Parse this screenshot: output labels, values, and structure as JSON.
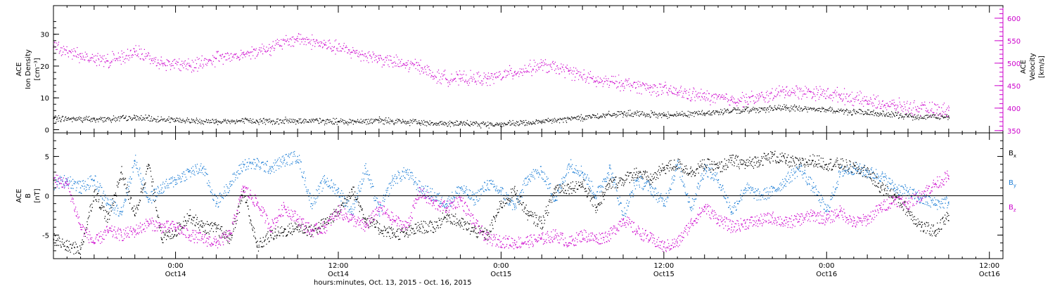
{
  "chart_data": [
    {
      "type": "scatter",
      "panel": "top",
      "ylabel_left_lines": [
        "ACE",
        "Ion Density",
        "[cm⁻³]"
      ],
      "ylabel_right_lines": [
        "ACE",
        "Velocity",
        "[km/s]"
      ],
      "ylim_left": [
        -1,
        39
      ],
      "ylim_right": [
        345,
        628
      ],
      "yticks_left": [
        0,
        10,
        20,
        30
      ],
      "yticks_right": [
        350,
        400,
        450,
        500,
        550,
        600
      ],
      "series": [
        {
          "axis": "left",
          "color": "#000000",
          "points": [
            [
              -9,
              3.5
            ],
            [
              -6,
              3.2
            ],
            [
              -3,
              3.6
            ],
            [
              0,
              2.9
            ],
            [
              3,
              2.6
            ],
            [
              6,
              2.7
            ],
            [
              9,
              2.8
            ],
            [
              12,
              2.5
            ],
            [
              15,
              2.8
            ],
            [
              18,
              2.2
            ],
            [
              21,
              1.8
            ],
            [
              24,
              1.6
            ],
            [
              27,
              2.4
            ],
            [
              30,
              3.8
            ],
            [
              33,
              5.0
            ],
            [
              36,
              4.6
            ],
            [
              39,
              5.2
            ],
            [
              42,
              6.2
            ],
            [
              45,
              6.8
            ],
            [
              48,
              6.2
            ],
            [
              51,
              5.2
            ],
            [
              54,
              4.2
            ],
            [
              57,
              4.0
            ]
          ]
        },
        {
          "axis": "right",
          "color": "#cc00cc",
          "points": [
            [
              -9,
              535
            ],
            [
              -7,
              515
            ],
            [
              -5,
              505
            ],
            [
              -3,
              525
            ],
            [
              -1,
              500
            ],
            [
              1,
              495
            ],
            [
              3,
              510
            ],
            [
              5,
              520
            ],
            [
              7,
              535
            ],
            [
              9,
              555
            ],
            [
              11,
              540
            ],
            [
              13,
              525
            ],
            [
              15,
              510
            ],
            [
              17,
              495
            ],
            [
              18,
              495
            ],
            [
              19,
              470
            ],
            [
              21,
              465
            ],
            [
              23,
              465
            ],
            [
              25,
              480
            ],
            [
              27,
              495
            ],
            [
              29,
              482
            ],
            [
              31,
              460
            ],
            [
              33,
              455
            ],
            [
              35,
              445
            ],
            [
              37,
              435
            ],
            [
              39,
              425
            ],
            [
              41,
              418
            ],
            [
              43,
              422
            ],
            [
              45,
              438
            ],
            [
              47,
              435
            ],
            [
              49,
              428
            ],
            [
              51,
              415
            ],
            [
              53,
              405
            ],
            [
              55,
              398
            ],
            [
              57,
              395
            ]
          ]
        }
      ]
    },
    {
      "type": "scatter",
      "panel": "bottom",
      "ylabel_lines": [
        "ACE",
        "B",
        "[nT]"
      ],
      "ylim": [
        -8,
        8
      ],
      "yticks": [
        -5,
        0,
        5
      ],
      "zero_line": true,
      "legend": [
        {
          "label": "Bx",
          "color": "#000000"
        },
        {
          "label": "By",
          "color": "#1f7fd6"
        },
        {
          "label": "Bz",
          "color": "#cc00cc"
        }
      ],
      "series": [
        {
          "name": "Bx",
          "color": "#000000",
          "points": [
            [
              -9,
              -5.5
            ],
            [
              -8,
              -6.5
            ],
            [
              -7,
              -6.8
            ],
            [
              -6,
              0.5
            ],
            [
              -5,
              -3
            ],
            [
              -4,
              3
            ],
            [
              -3,
              -2.5
            ],
            [
              -2,
              4
            ],
            [
              -1,
              -5.5
            ],
            [
              0,
              -4.5
            ],
            [
              1,
              -2.5
            ],
            [
              2,
              -4
            ],
            [
              3,
              -4.2
            ],
            [
              4,
              -5.5
            ],
            [
              5,
              0.5
            ],
            [
              6,
              -6.5
            ],
            [
              7,
              -5
            ],
            [
              8,
              -4.5
            ],
            [
              9,
              -4
            ],
            [
              10,
              -4.5
            ],
            [
              11,
              -3.5
            ],
            [
              12,
              -2
            ],
            [
              13,
              0.8
            ],
            [
              14,
              -3
            ],
            [
              15,
              -4.2
            ],
            [
              16,
              -4.8
            ],
            [
              17,
              -4.8
            ],
            [
              18,
              -4
            ],
            [
              19,
              -4
            ],
            [
              20,
              -2.5
            ],
            [
              21,
              -3.5
            ],
            [
              22,
              -4.5
            ],
            [
              23,
              -5
            ],
            [
              24,
              -1
            ],
            [
              25,
              0.5
            ],
            [
              26,
              -2.5
            ],
            [
              27,
              -3.5
            ],
            [
              28,
              1
            ],
            [
              29,
              1
            ],
            [
              30,
              1.5
            ],
            [
              31,
              -1.5
            ],
            [
              32,
              1.5
            ],
            [
              33,
              2
            ],
            [
              34,
              3
            ],
            [
              35,
              2
            ],
            [
              36,
              3.5
            ],
            [
              37,
              4
            ],
            [
              38,
              3
            ],
            [
              39,
              4
            ],
            [
              40,
              3.5
            ],
            [
              41,
              4.5
            ],
            [
              42,
              4
            ],
            [
              43,
              4.5
            ],
            [
              44,
              5
            ],
            [
              45,
              4.5
            ],
            [
              46,
              4
            ],
            [
              47,
              4.5
            ],
            [
              48,
              4
            ],
            [
              49,
              4
            ],
            [
              50,
              3.5
            ],
            [
              51,
              3
            ],
            [
              52,
              1
            ],
            [
              53,
              0
            ],
            [
              54,
              -2
            ],
            [
              55,
              -4
            ],
            [
              56,
              -4.5
            ],
            [
              57,
              -2.5
            ]
          ]
        },
        {
          "name": "By",
          "color": "#1f7fd6",
          "points": [
            [
              -9,
              1.5
            ],
            [
              -8,
              2
            ],
            [
              -7,
              1
            ],
            [
              -6,
              2
            ],
            [
              -5,
              -1
            ],
            [
              -4,
              -2
            ],
            [
              -3,
              4.5
            ],
            [
              -2,
              -0.5
            ],
            [
              -1,
              1
            ],
            [
              0,
              2
            ],
            [
              1,
              3
            ],
            [
              2,
              3.5
            ],
            [
              3,
              -1
            ],
            [
              4,
              1.5
            ],
            [
              5,
              4
            ],
            [
              6,
              4
            ],
            [
              7,
              3.5
            ],
            [
              8,
              4.5
            ],
            [
              9,
              5
            ],
            [
              10,
              -1
            ],
            [
              11,
              2
            ],
            [
              12,
              0.5
            ],
            [
              13,
              -2
            ],
            [
              14,
              3.5
            ],
            [
              15,
              -2
            ],
            [
              16,
              2
            ],
            [
              17,
              3
            ],
            [
              18,
              1
            ],
            [
              19,
              0
            ],
            [
              20,
              -1
            ],
            [
              21,
              1
            ],
            [
              22,
              -0.5
            ],
            [
              23,
              1.5
            ],
            [
              24,
              0.5
            ],
            [
              25,
              -1.5
            ],
            [
              26,
              2.5
            ],
            [
              27,
              3
            ],
            [
              28,
              -0.5
            ],
            [
              29,
              4
            ],
            [
              30,
              3
            ],
            [
              31,
              0
            ],
            [
              32,
              3.5
            ],
            [
              33,
              -2.5
            ],
            [
              34,
              2
            ],
            [
              35,
              1
            ],
            [
              36,
              -1
            ],
            [
              37,
              4
            ],
            [
              38,
              -1.5
            ],
            [
              39,
              3.5
            ],
            [
              40,
              2
            ],
            [
              41,
              -2
            ],
            [
              42,
              1
            ],
            [
              43,
              0
            ],
            [
              44,
              0.5
            ],
            [
              45,
              2
            ],
            [
              46,
              3.5
            ],
            [
              47,
              1
            ],
            [
              48,
              -2
            ],
            [
              49,
              3
            ],
            [
              50,
              3.5
            ],
            [
              51,
              3
            ],
            [
              52,
              2.5
            ],
            [
              53,
              1
            ],
            [
              54,
              0.5
            ],
            [
              55,
              -0.5
            ],
            [
              56,
              -1
            ],
            [
              57,
              -0.8
            ]
          ]
        },
        {
          "name": "Bz",
          "color": "#cc00cc",
          "points": [
            [
              -9,
              2
            ],
            [
              -8,
              1.5
            ],
            [
              -7,
              -4
            ],
            [
              -6,
              -6
            ],
            [
              -5,
              -4.5
            ],
            [
              -4,
              -5
            ],
            [
              -3,
              -4.5
            ],
            [
              -2,
              -3.5
            ],
            [
              -1,
              -4
            ],
            [
              0,
              -4
            ],
            [
              1,
              -5
            ],
            [
              2,
              -5.5
            ],
            [
              3,
              -6
            ],
            [
              4,
              -5
            ],
            [
              5,
              1
            ],
            [
              6,
              -1
            ],
            [
              7,
              -4
            ],
            [
              8,
              -1.5
            ],
            [
              9,
              -3
            ],
            [
              10,
              -4.5
            ],
            [
              11,
              -4
            ],
            [
              12,
              -2
            ],
            [
              13,
              -3
            ],
            [
              14,
              -4
            ],
            [
              15,
              -1.5
            ],
            [
              16,
              -3
            ],
            [
              17,
              -4
            ],
            [
              18,
              0.5
            ],
            [
              19,
              -1
            ],
            [
              20,
              -1.5
            ],
            [
              21,
              -0.5
            ],
            [
              22,
              -3.5
            ],
            [
              23,
              -5.5
            ],
            [
              24,
              -5.8
            ],
            [
              25,
              -6
            ],
            [
              26,
              -5.8
            ],
            [
              27,
              -5.5
            ],
            [
              28,
              -5
            ],
            [
              29,
              -6
            ],
            [
              30,
              -5
            ],
            [
              31,
              -5.5
            ],
            [
              32,
              -5
            ],
            [
              33,
              -3
            ],
            [
              34,
              -4.5
            ],
            [
              35,
              -5.5
            ],
            [
              36,
              -6.5
            ],
            [
              37,
              -6
            ],
            [
              38,
              -3.5
            ],
            [
              39,
              -1.5
            ],
            [
              40,
              -3
            ],
            [
              41,
              -4
            ],
            [
              42,
              -3.5
            ],
            [
              43,
              -3.2
            ],
            [
              44,
              -2.8
            ],
            [
              45,
              -3.5
            ],
            [
              46,
              -3
            ],
            [
              47,
              -2.5
            ],
            [
              48,
              -3
            ],
            [
              49,
              -2
            ],
            [
              50,
              -3.5
            ],
            [
              51,
              -3
            ],
            [
              52,
              -1.5
            ],
            [
              53,
              -0.5
            ],
            [
              54,
              -1
            ],
            [
              55,
              0.2
            ],
            [
              56,
              1.5
            ],
            [
              57,
              2.5
            ]
          ]
        }
      ]
    }
  ],
  "x_axis": {
    "xlim": [
      -9,
      61
    ],
    "major_ticks": [
      {
        "h": 0,
        "time": "0:00",
        "day": "Oct14"
      },
      {
        "h": 12,
        "time": "12:00",
        "day": "Oct14"
      },
      {
        "h": 24,
        "time": "0:00",
        "day": "Oct15"
      },
      {
        "h": 36,
        "time": "12:00",
        "day": "Oct15"
      },
      {
        "h": 48,
        "time": "0:00",
        "day": "Oct16"
      },
      {
        "h": 60,
        "time": "12:00",
        "day": "Oct16"
      }
    ],
    "xlabel": "hours:minutes, Oct. 13, 2015 - Oct. 16, 2015"
  }
}
